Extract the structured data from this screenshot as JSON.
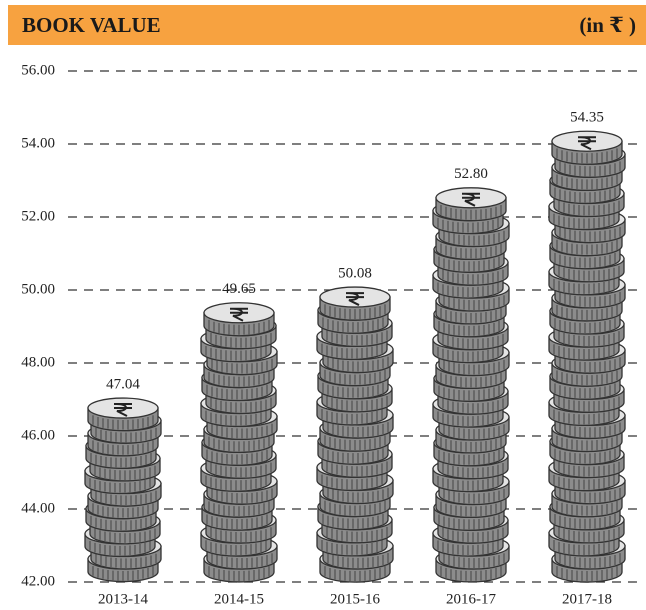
{
  "chart_data": {
    "type": "bar",
    "title": "BOOK VALUE",
    "unit": "(in ₹ )",
    "categories": [
      "2013-14",
      "2014-15",
      "2015-16",
      "2016-17",
      "2017-18"
    ],
    "values": [
      47.04,
      49.65,
      50.08,
      52.8,
      54.35
    ],
    "value_labels": [
      "47.04",
      "49.65",
      "50.08",
      "52.80",
      "54.35"
    ],
    "color": "#8c8c8c",
    "ylim": [
      42,
      56
    ],
    "yticks": [
      {
        "value": 42,
        "label": "42.00"
      },
      {
        "value": 44,
        "label": "44.00"
      },
      {
        "value": 46,
        "label": "46.00"
      },
      {
        "value": 48,
        "label": "48.00"
      },
      {
        "value": 50,
        "label": "50.00"
      },
      {
        "value": 52,
        "label": "52.00"
      },
      {
        "value": 54,
        "label": "54.00"
      },
      {
        "value": 56,
        "label": "56.00"
      }
    ],
    "grid": true
  }
}
